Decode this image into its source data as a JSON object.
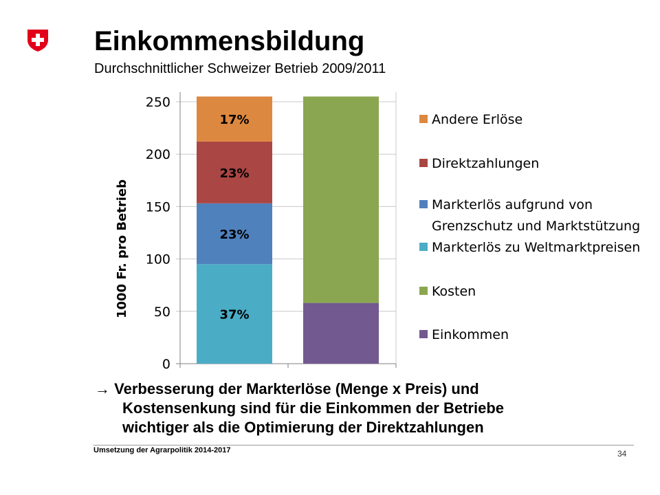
{
  "header": {
    "title": "Einkommensbildung",
    "subtitle": "Durchschnittlicher Schweizer Betrieb 2009/2011",
    "logo_icon": "swiss-cross-icon",
    "logo_color": "#e2001a"
  },
  "chart_data": {
    "type": "stacked-bar",
    "ylabel": "1000 Fr. pro Betrieb",
    "ylim": [
      0,
      250
    ],
    "yticks": [
      0,
      50,
      100,
      150,
      200,
      250
    ],
    "grid": true,
    "legend_placement": "right",
    "columns": [
      {
        "segments": [
          {
            "series": "Markterlös zu Weltmarktpreisen",
            "value": 95,
            "label": "37%"
          },
          {
            "series": "Markterlös aufgrund von Grenzschutz und Marktstützung",
            "value": 58,
            "label": "23%"
          },
          {
            "series": "Direktzahlungen",
            "value": 59,
            "label": "23%"
          },
          {
            "series": "Andere Erlöse",
            "value": 43,
            "label": "17%"
          }
        ]
      },
      {
        "segments": [
          {
            "series": "Einkommen",
            "value": 58,
            "label": ""
          },
          {
            "series": "Kosten",
            "value": 197,
            "label": ""
          }
        ]
      }
    ],
    "legend": [
      {
        "name": "Andere Erlöse",
        "lines": [
          "Andere Erlöse"
        ],
        "color": "#dd8840"
      },
      {
        "name": "Direktzahlungen",
        "lines": [
          "Direktzahlungen"
        ],
        "color": "#aa4643"
      },
      {
        "name": "Markterlös aufgrund von Grenzschutz und Marktstützung",
        "lines": [
          "Markterlös aufgrund von",
          "Grenzschutz und Marktstützung"
        ],
        "color": "#4f81bd"
      },
      {
        "name": "Markterlös zu Weltmarktpreisen",
        "lines": [
          "Markterlös zu Weltmarktpreisen"
        ],
        "color": "#4bacc6"
      },
      {
        "name": "Kosten",
        "lines": [
          "Kosten"
        ],
        "color": "#8ba650"
      },
      {
        "name": "Einkommen",
        "lines": [
          "Einkommen"
        ],
        "color": "#725990"
      }
    ]
  },
  "takeaway": {
    "arrow": "→",
    "line1": "Verbesserung der Markterlöse (Menge x Preis) und",
    "line2": "Kostensenkung sind für die Einkommen der Betriebe",
    "line3": "wichtiger als die Optimierung der Direktzahlungen"
  },
  "footer": {
    "text": "Umsetzung der Agrarpolitik 2014-2017",
    "page_number": "34"
  }
}
